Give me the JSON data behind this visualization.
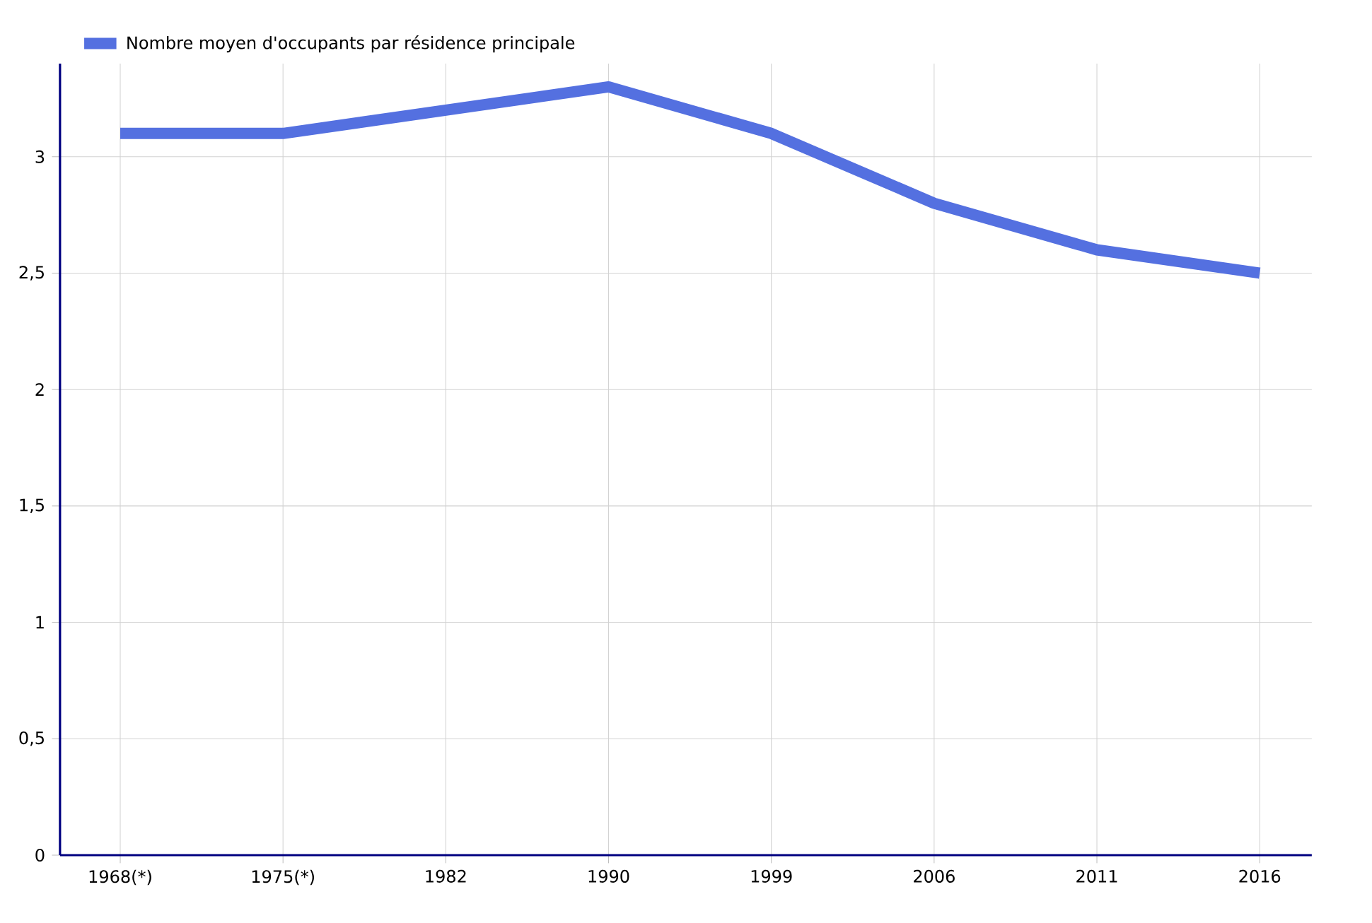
{
  "chart_data": {
    "type": "line",
    "categories": [
      "1968(*)",
      "1975(*)",
      "1982",
      "1990",
      "1999",
      "2006",
      "2011",
      "2016"
    ],
    "series": [
      {
        "name": "Nombre moyen d'occupants par résidence principale",
        "color": "#5470e0",
        "values": [
          3.1,
          3.1,
          3.2,
          3.3,
          3.1,
          2.8,
          2.6,
          2.5
        ]
      }
    ],
    "ylim": [
      0,
      3.4
    ],
    "yticks": [
      {
        "value": 0,
        "label": "0"
      },
      {
        "value": 0.5,
        "label": "0,5"
      },
      {
        "value": 1,
        "label": "1"
      },
      {
        "value": 1.5,
        "label": "1,5"
      },
      {
        "value": 2,
        "label": "2"
      },
      {
        "value": 2.5,
        "label": "2,5"
      },
      {
        "value": 3,
        "label": "3"
      }
    ],
    "grid": true,
    "legend": "top left",
    "marker": "none",
    "line_style": "solid"
  }
}
